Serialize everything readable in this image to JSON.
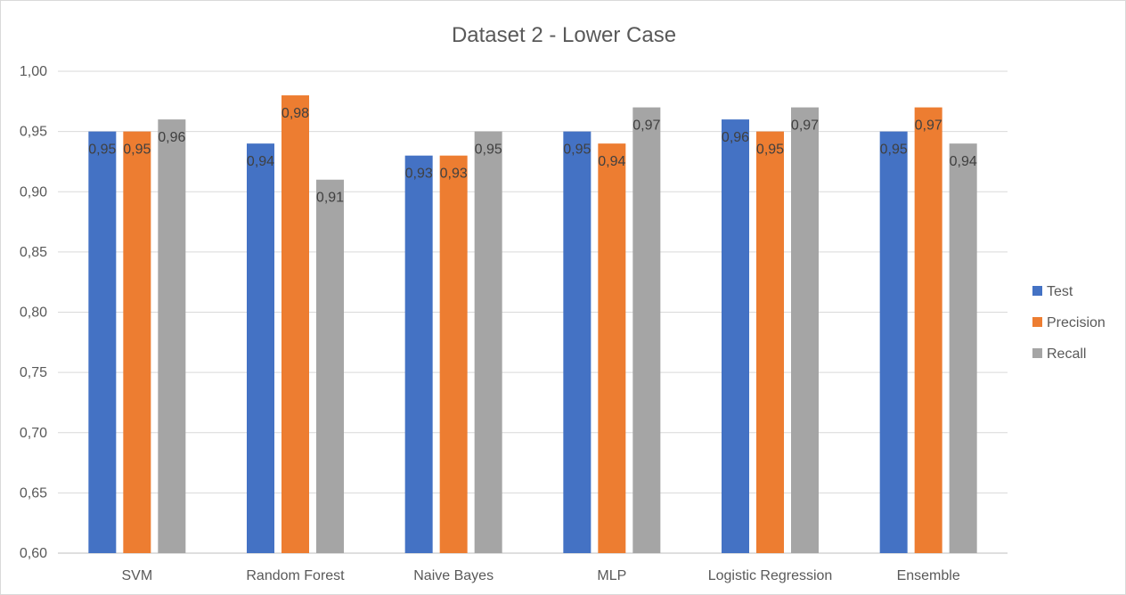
{
  "chart_data": {
    "type": "bar",
    "title": "Dataset 2 - Lower Case",
    "xlabel": "",
    "ylabel": "",
    "categories": [
      "SVM",
      "Random Forest",
      "Naive Bayes",
      "MLP",
      "Logistic Regression",
      "Ensemble"
    ],
    "series": [
      {
        "name": "Test",
        "color": "#4472c4",
        "values": [
          0.95,
          0.94,
          0.93,
          0.95,
          0.96,
          0.95
        ]
      },
      {
        "name": "Precision",
        "color": "#ed7d31",
        "values": [
          0.95,
          0.98,
          0.93,
          0.94,
          0.95,
          0.97
        ]
      },
      {
        "name": "Recall",
        "color": "#a5a5a5",
        "values": [
          0.96,
          0.91,
          0.95,
          0.97,
          0.97,
          0.94
        ]
      }
    ],
    "ylim": [
      0.6,
      1.0
    ],
    "yticks": [
      0.6,
      0.65,
      0.7,
      0.75,
      0.8,
      0.85,
      0.9,
      0.95,
      1.0
    ],
    "ytick_labels": [
      "0,60",
      "0,65",
      "0,70",
      "0,75",
      "0,80",
      "0,85",
      "0,90",
      "0,95",
      "1,00"
    ],
    "data_labels": [
      [
        "0,95",
        "0,94",
        "0,93",
        "0,95",
        "0,96",
        "0,95"
      ],
      [
        "0,95",
        "0,98",
        "0,93",
        "0,94",
        "0,95",
        "0,97"
      ],
      [
        "0,96",
        "0,91",
        "0,95",
        "0,97",
        "0,97",
        "0,94"
      ]
    ],
    "grid": true,
    "legend_position": "right"
  }
}
